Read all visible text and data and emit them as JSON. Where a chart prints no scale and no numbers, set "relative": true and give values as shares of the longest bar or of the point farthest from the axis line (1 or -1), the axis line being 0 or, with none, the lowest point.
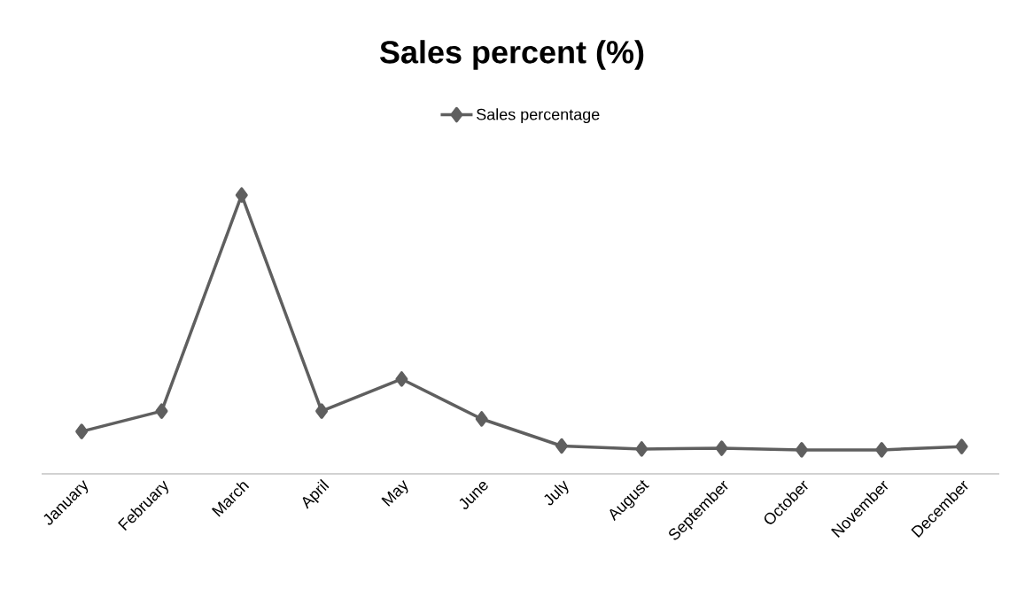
{
  "chart_data": {
    "type": "line",
    "title": "Sales percent (%)",
    "relative": true,
    "categories": [
      "January",
      "February",
      "March",
      "April",
      "May",
      "June",
      "July",
      "August",
      "September",
      "October",
      "November",
      "December"
    ],
    "series": [
      {
        "name": "Sales percentage",
        "color": "#5f5f5f",
        "values": [
          0.152,
          0.225,
          1,
          0.225,
          0.34,
          0.197,
          0.1,
          0.089,
          0.092,
          0.086,
          0.086,
          0.098
        ]
      }
    ],
    "marker": "diamond",
    "line_style": "solid",
    "legend": "top"
  }
}
